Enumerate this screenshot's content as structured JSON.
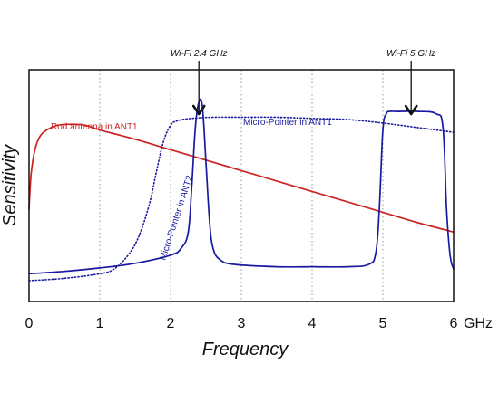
{
  "chart_data": {
    "type": "line",
    "title": "",
    "xlabel": "Frequency",
    "ylabel": "Sensitivity",
    "x_unit": "GHz",
    "xlim": [
      0,
      6
    ],
    "ylim": [
      0,
      1
    ],
    "x_ticks": [
      "0",
      "1",
      "2",
      "3",
      "4",
      "5",
      "6"
    ],
    "y_ticks_shown": false,
    "grid": "vertical-dotted",
    "series": [
      {
        "name": "Rod antenna in ANT1",
        "color": "#cc2222",
        "style": "solid",
        "x": [
          0.0,
          0.03,
          0.08,
          0.15,
          0.25,
          0.4,
          0.6,
          0.8,
          1.0,
          1.5,
          2.0,
          2.5,
          3.0,
          3.5,
          4.0,
          4.5,
          5.0,
          5.5,
          6.0
        ],
        "y": [
          0.4,
          0.55,
          0.65,
          0.71,
          0.74,
          0.76,
          0.765,
          0.76,
          0.74,
          0.7,
          0.655,
          0.61,
          0.565,
          0.52,
          0.475,
          0.43,
          0.385,
          0.34,
          0.3
        ]
      },
      {
        "name": "Micro-Pointer in ANT1",
        "color": "#1a1aa0",
        "style": "dotted",
        "x": [
          0.0,
          0.5,
          1.0,
          1.2,
          1.4,
          1.55,
          1.7,
          1.8,
          1.9,
          2.0,
          2.1,
          2.3,
          2.6,
          3.0,
          3.5,
          4.0,
          4.5,
          5.0,
          5.5,
          6.0
        ],
        "y": [
          0.09,
          0.1,
          0.12,
          0.14,
          0.2,
          0.28,
          0.42,
          0.56,
          0.69,
          0.76,
          0.78,
          0.79,
          0.795,
          0.795,
          0.795,
          0.79,
          0.785,
          0.77,
          0.75,
          0.73
        ]
      },
      {
        "name": "Micro-Pointer in ANT2",
        "color": "#1a1aa0",
        "style": "solid",
        "x": [
          0.0,
          0.5,
          1.0,
          1.5,
          2.0,
          2.15,
          2.25,
          2.3,
          2.35,
          2.4,
          2.45,
          2.5,
          2.55,
          2.6,
          2.7,
          2.9,
          3.5,
          4.0,
          4.5,
          4.8,
          4.9,
          4.95,
          5.0,
          5.05,
          5.1,
          5.2,
          5.5,
          5.75,
          5.85,
          5.9,
          5.95,
          6.0
        ],
        "y": [
          0.12,
          0.13,
          0.145,
          0.165,
          0.2,
          0.23,
          0.3,
          0.5,
          0.75,
          0.86,
          0.84,
          0.6,
          0.35,
          0.23,
          0.18,
          0.16,
          0.15,
          0.15,
          0.15,
          0.16,
          0.21,
          0.4,
          0.74,
          0.81,
          0.82,
          0.82,
          0.82,
          0.81,
          0.75,
          0.4,
          0.2,
          0.14
        ]
      }
    ],
    "annotations": [
      {
        "text": "Wi-Fi 2.4 GHz",
        "x": 2.4,
        "type": "arrow-down"
      },
      {
        "text": "Wi-Fi 5 GHz",
        "x": 5.4,
        "type": "arrow-down"
      }
    ]
  }
}
